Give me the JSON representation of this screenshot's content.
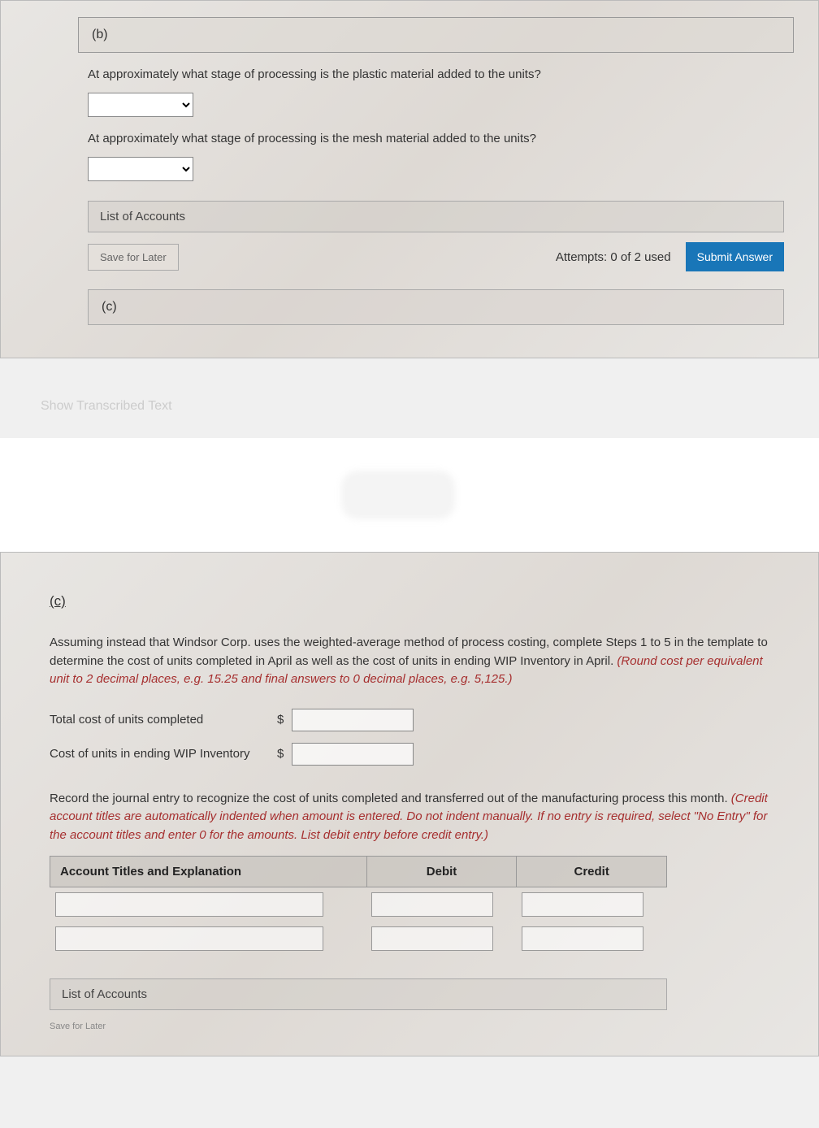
{
  "part_b": {
    "label": "(b)",
    "q1": "At approximately what stage of processing is the plastic material added to the units?",
    "q2": "At approximately what stage of processing is the mesh material added to the units?",
    "list_of_accounts": "List of Accounts",
    "save_label": "Save for Later",
    "attempts": "Attempts: 0 of 2 used",
    "submit_label": "Submit Answer",
    "c_label": "(c)"
  },
  "transcribed": "Show Transcribed Text",
  "part_c": {
    "label": "(c)",
    "instructions_plain": "Assuming instead that Windsor Corp. uses the weighted-average method of process costing, complete Steps 1 to 5 in the template to determine the cost of units completed in April as well as the cost of units in ending WIP Inventory in April. ",
    "instructions_italic": "(Round cost per equivalent unit to 2 decimal places, e.g. 15.25 and final answers to 0 decimal places, e.g. 5,125.)",
    "row1_label": "Total cost of units completed",
    "row2_label": "Cost of units in ending WIP Inventory",
    "journal_plain": "Record the journal entry to recognize the cost of units completed and transferred out of the manufacturing process this month. ",
    "journal_italic": "(Credit account titles are automatically indented when amount is entered. Do not indent manually. If no entry is required, select \"No Entry\" for the account titles and enter 0 for the amounts. List debit entry before credit entry.)",
    "table": {
      "col1": "Account Titles and Explanation",
      "col2": "Debit",
      "col3": "Credit"
    },
    "list_of_accounts": "List of Accounts",
    "tiny": "Save for Later"
  },
  "colors": {
    "submit_bg": "#1976b8",
    "italic_red": "#a62f2f"
  }
}
